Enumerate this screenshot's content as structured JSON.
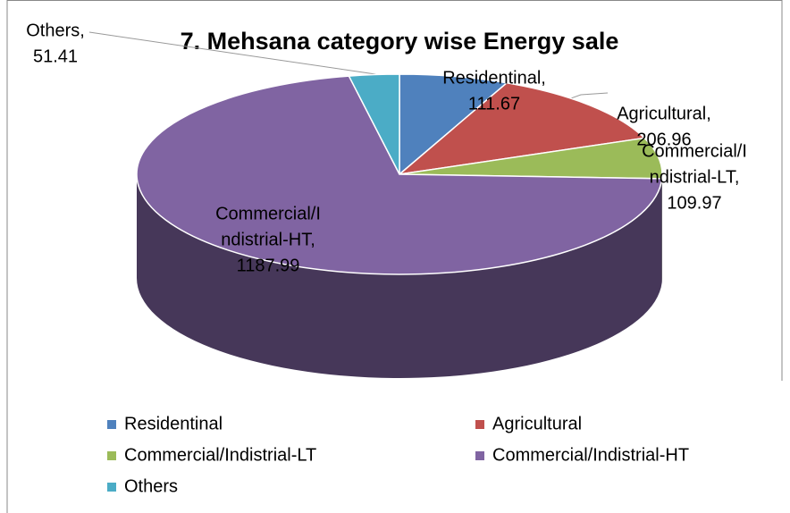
{
  "chart_data": {
    "type": "pie3d",
    "title": "7. Mehsana category wise Energy sale",
    "categories": [
      "Residentinal",
      "Agricultural",
      "Commercial/Indistrial-LT",
      "Commercial/Indistrial-HT",
      "Others"
    ],
    "values": [
      111.67,
      206.96,
      109.97,
      1187.99,
      51.41
    ],
    "value_labels": [
      [
        "Residentinal,",
        "111.67"
      ],
      [
        "Agricultural,",
        "206.96"
      ],
      [
        "Commercial/I",
        "ndistrial-LT,",
        "109.97"
      ],
      [
        "Commercial/I",
        "ndistrial-HT,",
        "1187.99"
      ],
      [
        "Others,",
        "51.41"
      ]
    ],
    "colors": [
      "#4f81bd",
      "#c0504d",
      "#9bbb59",
      "#8064a2",
      "#4bacc6"
    ],
    "legend": "bottom"
  }
}
